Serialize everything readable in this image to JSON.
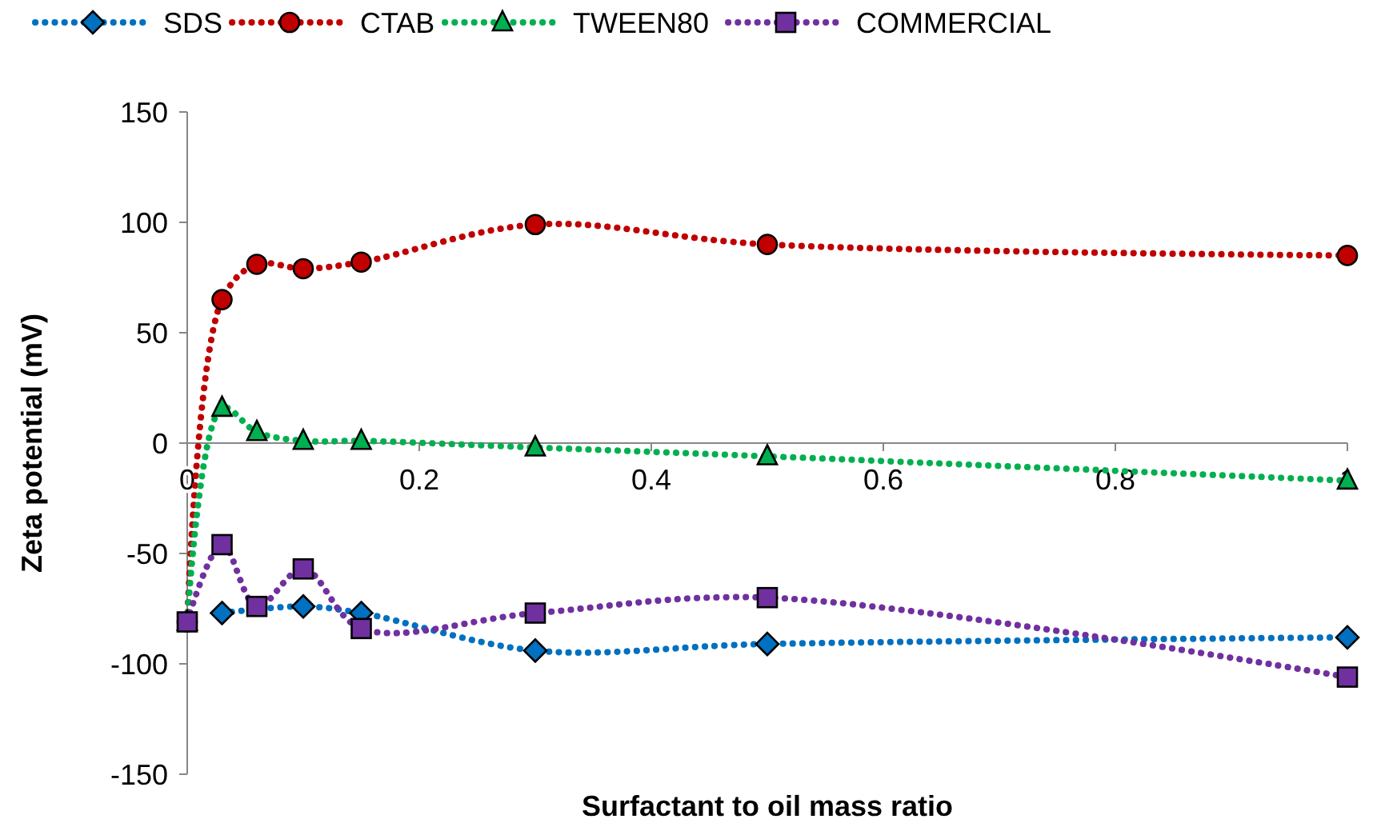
{
  "chart_data": {
    "type": "line",
    "xlabel": "Surfactant to oil mass ratio",
    "ylabel": "Zeta potential (mV)",
    "x": [
      0,
      0.03,
      0.06,
      0.1,
      0.15,
      0.3,
      0.5,
      1
    ],
    "xlim": [
      0,
      1
    ],
    "xticks": [
      0,
      0.2,
      0.4,
      0.6,
      0.8,
      1
    ],
    "ylim": [
      -150,
      150
    ],
    "yticks": [
      -150,
      -100,
      -50,
      0,
      50,
      100,
      150
    ],
    "grid": false,
    "legend": "top",
    "line_style": "dotted",
    "series": [
      {
        "name": "SDS",
        "color": "#0070c0",
        "marker": "diamond",
        "values": [
          null,
          -77,
          null,
          -74,
          -77,
          -94,
          -91,
          -88
        ]
      },
      {
        "name": "CTAB",
        "color": "#c00000",
        "marker": "circle",
        "values": [
          -81,
          65,
          81,
          79,
          82,
          99,
          90,
          85
        ]
      },
      {
        "name": "TWEEN80",
        "color": "#00b050",
        "marker": "triangle",
        "values": [
          -81,
          16,
          5,
          1,
          1,
          -2,
          -6,
          -17
        ]
      },
      {
        "name": "COMMERCIAL",
        "color": "#7030a0",
        "marker": "square",
        "values": [
          -81,
          -46,
          -74,
          -57,
          -84,
          -77,
          -70,
          -106
        ]
      }
    ]
  }
}
